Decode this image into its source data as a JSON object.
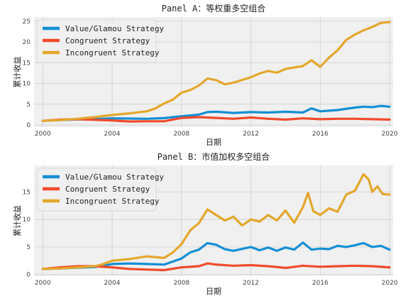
{
  "chart_data": [
    {
      "type": "line",
      "title": "Panel A：等权重多空组合",
      "xlabel": "日期",
      "ylabel": "累计收益",
      "xlim": [
        1999.5,
        2020.2
      ],
      "ylim": [
        -0.5,
        26
      ],
      "xticks": [
        2000,
        2004,
        2008,
        2012,
        2016,
        2020
      ],
      "yticks": [
        0,
        5,
        10,
        15,
        20,
        25
      ],
      "grid": true,
      "legend": "top-left",
      "series": [
        {
          "name": "Value/Glamou Strategy",
          "color": "#148fd4",
          "x": [
            2000,
            2001,
            2002,
            2003,
            2004,
            2005,
            2006,
            2007,
            2007.5,
            2008,
            2009,
            2009.5,
            2010,
            2011,
            2012,
            2013,
            2014,
            2015,
            2015.5,
            2016,
            2017,
            2018,
            2018.5,
            2019,
            2019.5,
            2020
          ],
          "values": [
            1.0,
            1.2,
            1.35,
            1.4,
            1.6,
            1.55,
            1.5,
            1.65,
            1.9,
            2.1,
            2.5,
            3.1,
            3.2,
            2.9,
            3.1,
            3.0,
            3.2,
            3.0,
            4.0,
            3.3,
            3.6,
            4.2,
            4.4,
            4.3,
            4.6,
            4.4
          ]
        },
        {
          "name": "Congruent Strategy",
          "color": "#f04a2c",
          "x": [
            2000,
            2001,
            2002,
            2003,
            2004,
            2005,
            2006,
            2007,
            2008,
            2009,
            2010,
            2011,
            2012,
            2013,
            2014,
            2015,
            2016,
            2017,
            2018,
            2019,
            2020
          ],
          "values": [
            1.0,
            1.3,
            1.4,
            1.25,
            1.1,
            0.85,
            0.9,
            0.9,
            1.7,
            1.9,
            1.7,
            1.5,
            1.8,
            1.5,
            1.3,
            1.6,
            1.4,
            1.5,
            1.5,
            1.4,
            1.3
          ]
        },
        {
          "name": "Incongruent Strategy",
          "color": "#e4a72c",
          "x": [
            2000,
            2001,
            2002,
            2003,
            2004,
            2005,
            2006,
            2006.5,
            2007,
            2007.5,
            2008,
            2008.5,
            2009,
            2009.5,
            2010,
            2010.5,
            2011,
            2012,
            2012.5,
            2013,
            2013.5,
            2014,
            2015,
            2015.5,
            2016,
            2016.5,
            2017,
            2017.5,
            2018,
            2018.5,
            2019,
            2019.5,
            2020
          ],
          "values": [
            1.0,
            1.2,
            1.5,
            1.9,
            2.4,
            2.8,
            3.3,
            4.0,
            5.2,
            6.1,
            7.8,
            8.4,
            9.5,
            11.2,
            10.8,
            9.8,
            10.2,
            11.5,
            12.4,
            13.0,
            12.6,
            13.5,
            14.2,
            15.6,
            14.0,
            16.2,
            18.0,
            20.5,
            21.8,
            22.8,
            23.6,
            24.6,
            24.8
          ]
        }
      ]
    },
    {
      "type": "line",
      "title": "Panel B：市值加权多空组合",
      "xlabel": "日期",
      "ylabel": "累计收益",
      "xlim": [
        1999.5,
        2020.2
      ],
      "ylim": [
        -0.3,
        19.8
      ],
      "xticks": [
        2000,
        2004,
        2008,
        2012,
        2016,
        2020
      ],
      "yticks": [
        0,
        5,
        10,
        15
      ],
      "grid": true,
      "legend": "top-left",
      "series": [
        {
          "name": "Value/Glamou Strategy",
          "color": "#148fd4",
          "x": [
            2000,
            2001,
            2002,
            2003,
            2003.5,
            2004,
            2005,
            2006,
            2007,
            2008,
            2008.5,
            2009,
            2009.5,
            2010,
            2010.5,
            2011,
            2012,
            2012.5,
            2013,
            2013.5,
            2014,
            2014.5,
            2015,
            2015.5,
            2016,
            2016.5,
            2017,
            2017.5,
            2018,
            2018.5,
            2019,
            2019.5,
            2020
          ],
          "values": [
            1.0,
            1.1,
            1.25,
            1.35,
            1.6,
            1.9,
            2.0,
            1.9,
            1.8,
            2.9,
            4.0,
            4.5,
            5.7,
            5.4,
            4.6,
            4.3,
            5.0,
            4.4,
            4.9,
            4.3,
            4.9,
            4.5,
            5.8,
            4.5,
            4.7,
            4.6,
            5.2,
            5.0,
            5.3,
            5.7,
            5.0,
            5.2,
            4.5
          ]
        },
        {
          "name": "Congruent Strategy",
          "color": "#f04a2c",
          "x": [
            2000,
            2001,
            2002,
            2003,
            2004,
            2005,
            2006,
            2007,
            2008,
            2009,
            2009.5,
            2010,
            2011,
            2012,
            2013,
            2014,
            2015,
            2016,
            2017,
            2018,
            2019,
            2020
          ],
          "values": [
            1.0,
            1.3,
            1.5,
            1.5,
            1.3,
            1.0,
            0.9,
            0.8,
            1.3,
            1.5,
            2.0,
            1.8,
            1.6,
            1.7,
            1.5,
            1.2,
            1.6,
            1.4,
            1.5,
            1.6,
            1.5,
            1.3
          ]
        },
        {
          "name": "Incongruent Strategy",
          "color": "#e4a72c",
          "x": [
            2000,
            2001,
            2002,
            2003,
            2003.5,
            2004,
            2005,
            2006,
            2007,
            2007.5,
            2008,
            2008.5,
            2009,
            2009.5,
            2010,
            2010.5,
            2011,
            2011.5,
            2012,
            2012.5,
            2013,
            2013.5,
            2014,
            2014.5,
            2015,
            2015.3,
            2015.6,
            2016,
            2016.5,
            2017,
            2017.5,
            2018,
            2018.5,
            2018.8,
            2019,
            2019.3,
            2019.6,
            2020
          ],
          "values": [
            1.0,
            1.1,
            1.3,
            1.5,
            1.9,
            2.5,
            2.8,
            3.3,
            3.0,
            4.0,
            5.5,
            8.0,
            9.3,
            11.8,
            10.8,
            9.8,
            10.5,
            8.9,
            10.0,
            9.6,
            10.8,
            9.8,
            11.6,
            9.4,
            12.2,
            14.8,
            11.5,
            10.8,
            12.0,
            11.4,
            14.5,
            15.2,
            18.2,
            17.2,
            15.0,
            16.0,
            14.6,
            14.5
          ]
        }
      ]
    }
  ]
}
